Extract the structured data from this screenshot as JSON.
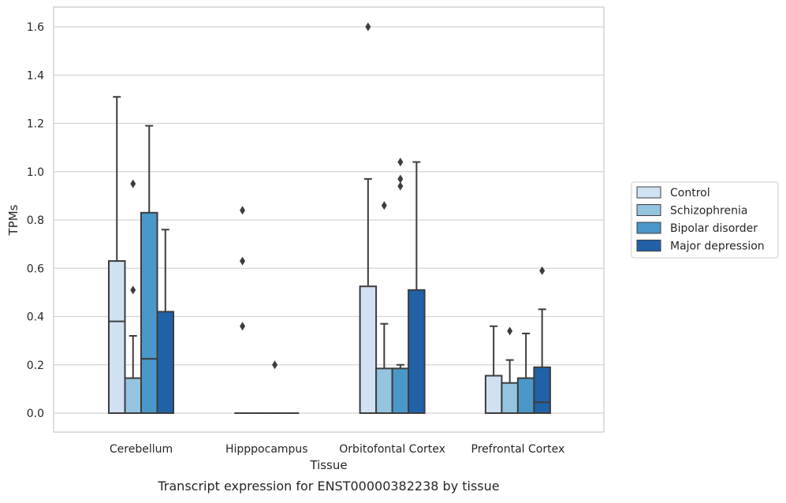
{
  "chart_data": {
    "type": "boxplot",
    "caption": "Transcript expression for ENST00000382238 by tissue",
    "xlabel": "Tissue",
    "ylabel": "TPMs",
    "ylim": [
      -0.08,
      1.68
    ],
    "yticks": [
      0.0,
      0.2,
      0.4,
      0.6,
      0.8,
      1.0,
      1.2,
      1.4,
      1.6
    ],
    "ytick_labels": [
      "0.0",
      "0.2",
      "0.4",
      "0.6",
      "0.8",
      "1.0",
      "1.2",
      "1.4",
      "1.6"
    ],
    "categories": [
      "Cerebellum",
      "Hipppocampus",
      "Orbitofontal Cortex",
      "Prefrontal Cortex"
    ],
    "grid": true,
    "legend_position": "right",
    "series": [
      {
        "name": "Control",
        "color": "#d0e1f2",
        "boxes": [
          {
            "q1": 0.0,
            "median": 0.38,
            "q3": 0.63,
            "whisker_low": 0.0,
            "whisker_high": 1.31,
            "outliers": []
          },
          {
            "q1": 0.0,
            "median": 0.0,
            "q3": 0.0,
            "whisker_low": 0.0,
            "whisker_high": 0.0,
            "outliers": [
              0.84,
              0.63,
              0.36
            ]
          },
          {
            "q1": 0.0,
            "median": 0.0,
            "q3": 0.525,
            "whisker_low": 0.0,
            "whisker_high": 0.97,
            "outliers": [
              1.6
            ]
          },
          {
            "q1": 0.0,
            "median": 0.0,
            "q3": 0.155,
            "whisker_low": 0.0,
            "whisker_high": 0.36,
            "outliers": []
          }
        ]
      },
      {
        "name": "Schizophrenia",
        "color": "#94c4df",
        "boxes": [
          {
            "q1": 0.0,
            "median": 0.0,
            "q3": 0.145,
            "whisker_low": 0.0,
            "whisker_high": 0.32,
            "outliers": [
              0.95,
              0.51
            ]
          },
          {
            "q1": 0.0,
            "median": 0.0,
            "q3": 0.0,
            "whisker_low": 0.0,
            "whisker_high": 0.0,
            "outliers": []
          },
          {
            "q1": 0.0,
            "median": 0.0,
            "q3": 0.185,
            "whisker_low": 0.0,
            "whisker_high": 0.37,
            "outliers": [
              0.86
            ]
          },
          {
            "q1": 0.0,
            "median": 0.0,
            "q3": 0.125,
            "whisker_low": 0.0,
            "whisker_high": 0.22,
            "outliers": [
              0.34
            ]
          }
        ]
      },
      {
        "name": "Bipolar disorder",
        "color": "#4a98c9",
        "boxes": [
          {
            "q1": 0.0,
            "median": 0.225,
            "q3": 0.83,
            "whisker_low": 0.0,
            "whisker_high": 1.19,
            "outliers": []
          },
          {
            "q1": 0.0,
            "median": 0.0,
            "q3": 0.0,
            "whisker_low": 0.0,
            "whisker_high": 0.0,
            "outliers": [
              0.2
            ]
          },
          {
            "q1": 0.0,
            "median": 0.0,
            "q3": 0.185,
            "whisker_low": 0.0,
            "whisker_high": 0.2,
            "outliers": [
              1.04,
              0.97,
              0.94
            ]
          },
          {
            "q1": 0.0,
            "median": 0.0,
            "q3": 0.145,
            "whisker_low": 0.0,
            "whisker_high": 0.33,
            "outliers": []
          }
        ]
      },
      {
        "name": "Major depression",
        "color": "#2161a8",
        "boxes": [
          {
            "q1": 0.0,
            "median": 0.0,
            "q3": 0.42,
            "whisker_low": 0.0,
            "whisker_high": 0.76,
            "outliers": []
          },
          {
            "q1": 0.0,
            "median": 0.0,
            "q3": 0.0,
            "whisker_low": 0.0,
            "whisker_high": 0.0,
            "outliers": []
          },
          {
            "q1": 0.0,
            "median": 0.0,
            "q3": 0.51,
            "whisker_low": 0.0,
            "whisker_high": 1.04,
            "outliers": []
          },
          {
            "q1": 0.0,
            "median": 0.045,
            "q3": 0.19,
            "whisker_low": 0.0,
            "whisker_high": 0.43,
            "outliers": [
              0.59
            ]
          }
        ]
      }
    ]
  }
}
